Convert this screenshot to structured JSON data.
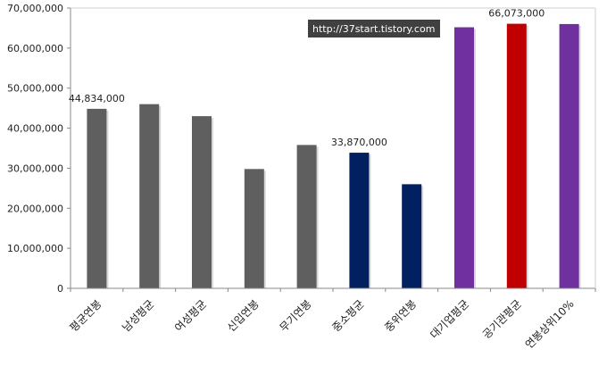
{
  "watermark": "http://37start.tistory.com",
  "chart_data": {
    "type": "bar",
    "title": "",
    "xlabel": "",
    "ylabel": "",
    "ylim": [
      0,
      70000000
    ],
    "yticks": [
      0,
      10000000,
      20000000,
      30000000,
      40000000,
      50000000,
      60000000,
      70000000
    ],
    "ytick_labels": [
      "0",
      "10,000,000",
      "20,000,000",
      "30,000,000",
      "40,000,000",
      "50,000,000",
      "60,000,000",
      "70,000,000"
    ],
    "grid": false,
    "legend": "none",
    "categories": [
      "평균연봉",
      "남성평균",
      "여성평균",
      "신입연봉",
      "무기연봉",
      "중소평균",
      "중위연봉",
      "대기업평균",
      "공기관평균",
      "연봉상위10%"
    ],
    "values": [
      44834000,
      46000000,
      43000000,
      29800000,
      35800000,
      33870000,
      26000000,
      65200000,
      66073000,
      66000000
    ],
    "colors": [
      "#5f5f5f",
      "#5f5f5f",
      "#5f5f5f",
      "#5f5f5f",
      "#5f5f5f",
      "#002060",
      "#002060",
      "#7030a0",
      "#c00000",
      "#7030a0"
    ],
    "data_labels": [
      {
        "index": 0,
        "text": "44,834,000"
      },
      {
        "index": 5,
        "text": "33,870,000"
      },
      {
        "index": 8,
        "text": "66,073,000"
      }
    ]
  }
}
